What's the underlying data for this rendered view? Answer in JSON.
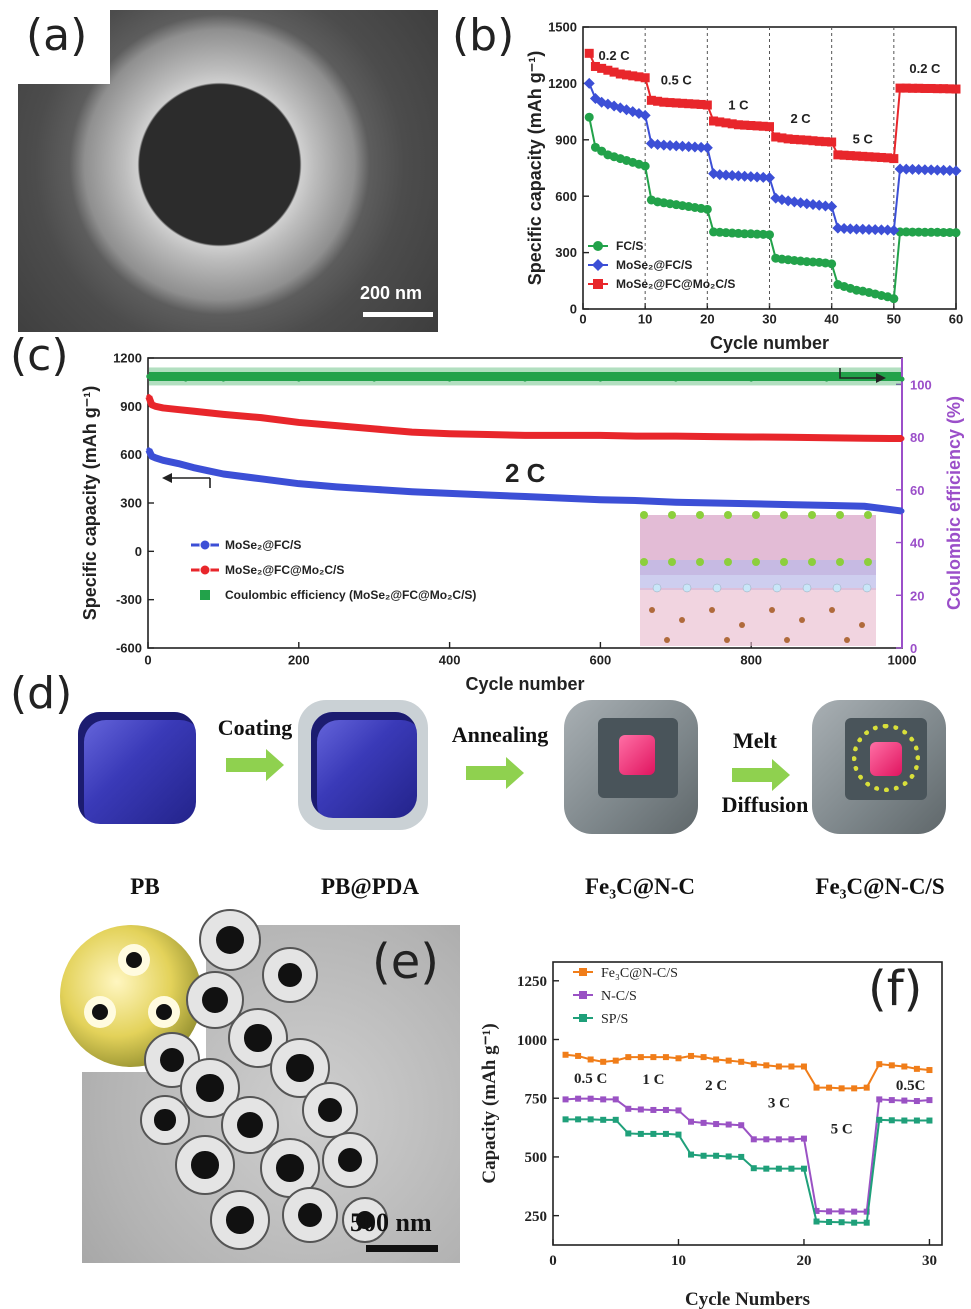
{
  "panel_a": {
    "letter": "(a)",
    "scale_label": "200 nm"
  },
  "panel_b": {
    "letter": "(b)"
  },
  "panel_c": {
    "letter": "(c)",
    "rate_label": "2 C"
  },
  "panel_d": {
    "letter": "(d)",
    "steps": [
      "Coating",
      "Annealing",
      "Melt",
      "Diffusion"
    ],
    "materials": [
      "PB",
      "PB@PDA",
      "Fe₃C@N-C",
      "Fe₃C@N-C/S"
    ]
  },
  "panel_e": {
    "letter": "(e)",
    "scale_label": "500 nm"
  },
  "panel_f": {
    "letter": "(f)"
  },
  "colors": {
    "red": "#e8262b",
    "blue": "#3c4fd6",
    "green": "#22a24a",
    "orange": "#f07d19",
    "purple": "#9a52c4",
    "teal": "#1fa07a",
    "purple_axis": "#9b4fc9"
  },
  "chart_data": [
    {
      "id": "b",
      "type": "line",
      "xlabel": "Cycle number",
      "ylabel": "Specific capacity (mAh g⁻¹)",
      "xlim": [
        0,
        60
      ],
      "ylim": [
        0,
        1500
      ],
      "xticks": [
        0,
        10,
        20,
        30,
        40,
        50,
        60
      ],
      "yticks": [
        0,
        300,
        600,
        900,
        1200,
        1500
      ],
      "rate_labels": [
        {
          "text": "0.2 C",
          "x": 5,
          "y": 1325
        },
        {
          "text": "0.5 C",
          "x": 15,
          "y": 1195
        },
        {
          "text": "1 C",
          "x": 25,
          "y": 1060
        },
        {
          "text": "2 C",
          "x": 35,
          "y": 990
        },
        {
          "text": "5 C",
          "x": 45,
          "y": 880
        },
        {
          "text": "0.2 C",
          "x": 55,
          "y": 1255
        }
      ],
      "legend_position": "bottom-left",
      "series": [
        {
          "name": "FC/S",
          "color": "#22a24a",
          "marker": "circle",
          "x": [
            1,
            2,
            3,
            4,
            5,
            6,
            7,
            8,
            9,
            10,
            11,
            12,
            13,
            14,
            15,
            16,
            17,
            18,
            19,
            20,
            21,
            22,
            23,
            24,
            25,
            26,
            27,
            28,
            29,
            30,
            31,
            32,
            33,
            34,
            35,
            36,
            37,
            38,
            39,
            40,
            41,
            42,
            43,
            44,
            45,
            46,
            47,
            48,
            49,
            50,
            51,
            52,
            53,
            54,
            55,
            56,
            57,
            58,
            59,
            60
          ],
          "y": [
            1020,
            860,
            840,
            820,
            810,
            800,
            790,
            780,
            770,
            760,
            580,
            570,
            565,
            560,
            555,
            550,
            545,
            540,
            535,
            530,
            410,
            408,
            406,
            404,
            402,
            400,
            400,
            398,
            397,
            395,
            270,
            265,
            262,
            258,
            255,
            252,
            250,
            248,
            245,
            240,
            130,
            120,
            110,
            100,
            95,
            88,
            80,
            72,
            65,
            55,
            410,
            410,
            409,
            409,
            408,
            408,
            408,
            407,
            407,
            406
          ]
        },
        {
          "name": "MoSe₂@FC/S",
          "color": "#3c4fd6",
          "marker": "diamond",
          "x": [
            1,
            2,
            3,
            4,
            5,
            6,
            7,
            8,
            9,
            10,
            11,
            12,
            13,
            14,
            15,
            16,
            17,
            18,
            19,
            20,
            21,
            22,
            23,
            24,
            25,
            26,
            27,
            28,
            29,
            30,
            31,
            32,
            33,
            34,
            35,
            36,
            37,
            38,
            39,
            40,
            41,
            42,
            43,
            44,
            45,
            46,
            47,
            48,
            49,
            50,
            51,
            52,
            53,
            54,
            55,
            56,
            57,
            58,
            59,
            60
          ],
          "y": [
            1200,
            1120,
            1100,
            1090,
            1080,
            1070,
            1060,
            1050,
            1040,
            1030,
            880,
            875,
            872,
            870,
            868,
            866,
            864,
            862,
            860,
            858,
            720,
            715,
            712,
            710,
            708,
            706,
            704,
            702,
            700,
            698,
            590,
            582,
            575,
            570,
            565,
            560,
            556,
            552,
            548,
            545,
            430,
            428,
            426,
            425,
            424,
            423,
            422,
            421,
            420,
            418,
            745,
            744,
            743,
            742,
            741,
            740,
            739,
            738,
            737,
            735
          ]
        },
        {
          "name": "MoSe₂@FC@Mo₂C/S",
          "color": "#e8262b",
          "marker": "square",
          "x": [
            1,
            2,
            3,
            4,
            5,
            6,
            7,
            8,
            9,
            10,
            11,
            12,
            13,
            14,
            15,
            16,
            17,
            18,
            19,
            20,
            21,
            22,
            23,
            24,
            25,
            26,
            27,
            28,
            29,
            30,
            31,
            32,
            33,
            34,
            35,
            36,
            37,
            38,
            39,
            40,
            41,
            42,
            43,
            44,
            45,
            46,
            47,
            48,
            49,
            50,
            51,
            52,
            53,
            54,
            55,
            56,
            57,
            58,
            59,
            60
          ],
          "y": [
            1360,
            1290,
            1280,
            1270,
            1260,
            1250,
            1245,
            1240,
            1235,
            1230,
            1110,
            1105,
            1100,
            1098,
            1096,
            1094,
            1092,
            1090,
            1088,
            1085,
            1000,
            995,
            990,
            985,
            980,
            978,
            976,
            974,
            972,
            970,
            915,
            910,
            905,
            902,
            900,
            898,
            895,
            892,
            890,
            888,
            820,
            818,
            816,
            814,
            812,
            810,
            808,
            806,
            804,
            800,
            1175,
            1175,
            1174,
            1174,
            1173,
            1173,
            1172,
            1172,
            1171,
            1170
          ]
        }
      ]
    },
    {
      "id": "c",
      "type": "line",
      "xlabel": "Cycle number",
      "ylabel": "Specific capacity (mAh g⁻¹)",
      "y2label": "Coulombic efficiency (%)",
      "xlim": [
        0,
        1000
      ],
      "ylim": [
        -600,
        1200
      ],
      "y2lim": [
        0,
        110
      ],
      "xticks": [
        0,
        200,
        400,
        600,
        800,
        1000
      ],
      "yticks": [
        -600,
        -300,
        0,
        300,
        600,
        900,
        1200
      ],
      "y2ticks": [
        0,
        20,
        40,
        60,
        80,
        100
      ],
      "legend_position": "bottom-left",
      "series": [
        {
          "name": "MoSe₂@FC/S",
          "color": "#3c4fd6",
          "axis": "left",
          "x": [
            1,
            5,
            10,
            20,
            40,
            60,
            80,
            100,
            150,
            200,
            250,
            300,
            350,
            400,
            450,
            500,
            550,
            600,
            650,
            700,
            750,
            800,
            850,
            900,
            950,
            1000
          ],
          "y": [
            630,
            590,
            580,
            565,
            545,
            520,
            500,
            480,
            450,
            420,
            400,
            385,
            370,
            360,
            350,
            340,
            330,
            320,
            315,
            305,
            300,
            295,
            290,
            285,
            280,
            250
          ]
        },
        {
          "name": "MoSe₂@FC@Mo₂C/S",
          "color": "#e8262b",
          "axis": "left",
          "x": [
            1,
            5,
            10,
            20,
            40,
            60,
            80,
            100,
            150,
            200,
            250,
            300,
            350,
            400,
            450,
            500,
            550,
            600,
            650,
            700,
            750,
            800,
            850,
            900,
            950,
            1000
          ],
          "y": [
            960,
            910,
            900,
            890,
            880,
            870,
            860,
            850,
            830,
            800,
            780,
            760,
            740,
            730,
            725,
            720,
            720,
            720,
            715,
            715,
            712,
            710,
            708,
            705,
            702,
            700
          ]
        },
        {
          "name": "Coulombic efficiency (MoSe₂@FC@Mo₂C/S)",
          "color": "#22a24a",
          "axis": "right",
          "x": [
            1,
            10,
            50,
            100,
            200,
            300,
            400,
            500,
            600,
            700,
            800,
            900,
            1000
          ],
          "y": [
            103,
            103,
            102,
            102,
            102,
            102,
            102,
            102,
            102,
            102,
            102,
            102,
            102
          ]
        }
      ]
    },
    {
      "id": "f",
      "type": "line",
      "xlabel": "Cycle Numbers",
      "ylabel": "Capacity (mAh g⁻¹)",
      "xlim": [
        0,
        31
      ],
      "ylim": [
        125,
        1330
      ],
      "xticks": [
        0,
        10,
        20,
        30
      ],
      "yticks": [
        250,
        500,
        750,
        1000,
        1250
      ],
      "rate_labels": [
        {
          "text": "0.5 C",
          "x": 3,
          "y": 815
        },
        {
          "text": "1 C",
          "x": 8,
          "y": 810
        },
        {
          "text": "2 C",
          "x": 13,
          "y": 785
        },
        {
          "text": "3 C",
          "x": 18,
          "y": 710
        },
        {
          "text": "5 C",
          "x": 23,
          "y": 600
        },
        {
          "text": "0.5C",
          "x": 28.5,
          "y": 785
        }
      ],
      "legend_position": "top-left",
      "series": [
        {
          "name": "Fe₃C@N-C/S",
          "color": "#f07d19",
          "x": [
            1,
            2,
            3,
            4,
            5,
            6,
            7,
            8,
            9,
            10,
            11,
            12,
            13,
            14,
            15,
            16,
            17,
            18,
            19,
            20,
            21,
            22,
            23,
            24,
            25,
            26,
            27,
            28,
            29,
            30
          ],
          "y": [
            935,
            930,
            915,
            905,
            910,
            925,
            925,
            925,
            925,
            920,
            930,
            925,
            915,
            910,
            905,
            895,
            890,
            885,
            885,
            885,
            795,
            795,
            792,
            792,
            795,
            895,
            890,
            885,
            875,
            870
          ]
        },
        {
          "name": "N-C/S",
          "color": "#9a52c4",
          "x": [
            1,
            2,
            3,
            4,
            5,
            6,
            7,
            8,
            9,
            10,
            11,
            12,
            13,
            14,
            15,
            16,
            17,
            18,
            19,
            20,
            21,
            22,
            23,
            24,
            25,
            26,
            27,
            28,
            29,
            30
          ],
          "y": [
            745,
            748,
            748,
            745,
            745,
            705,
            702,
            700,
            700,
            698,
            650,
            645,
            640,
            638,
            635,
            575,
            575,
            575,
            575,
            578,
            270,
            268,
            268,
            267,
            267,
            745,
            742,
            740,
            738,
            742
          ]
        },
        {
          "name": "SP/S",
          "color": "#1fa07a",
          "x": [
            1,
            2,
            3,
            4,
            5,
            6,
            7,
            8,
            9,
            10,
            11,
            12,
            13,
            14,
            15,
            16,
            17,
            18,
            19,
            20,
            21,
            22,
            23,
            24,
            25,
            26,
            27,
            28,
            29,
            30
          ],
          "y": [
            660,
            660,
            660,
            658,
            658,
            600,
            598,
            598,
            598,
            595,
            510,
            505,
            505,
            502,
            500,
            452,
            450,
            450,
            450,
            450,
            225,
            223,
            222,
            220,
            220,
            658,
            656,
            655,
            655,
            655
          ]
        }
      ]
    }
  ]
}
